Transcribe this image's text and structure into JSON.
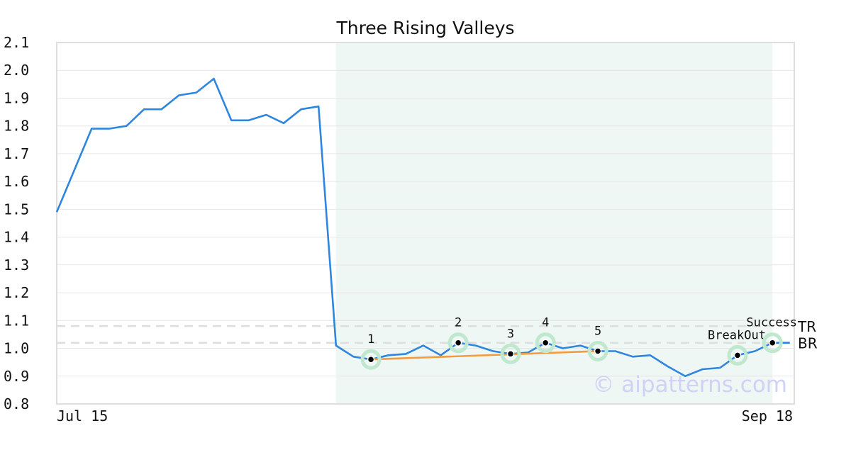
{
  "chart_data": {
    "type": "line",
    "title": "Three Rising Valleys",
    "x_labels": [
      "Jul 15",
      "Sep 18"
    ],
    "y_ticks": [
      "0.8",
      "0.9",
      "1.0",
      "1.1",
      "1.2",
      "1.3",
      "1.4",
      "1.5",
      "1.6",
      "1.7",
      "1.8",
      "1.9",
      "2.0",
      "2.1"
    ],
    "ylim": [
      0.8,
      2.1
    ],
    "grid": true,
    "colors": {
      "line": "#2e86de",
      "trendline": "#f39c3f",
      "highlight_band": "#eef7f3",
      "marker_halo": "#bfe8cf",
      "level_lines": "#dddddd"
    },
    "series": [
      {
        "values": [
          1.49,
          1.64,
          1.79,
          1.79,
          1.8,
          1.86,
          1.86,
          1.91,
          1.92,
          1.97,
          1.82,
          1.82,
          1.84,
          1.81,
          1.86,
          1.87,
          1.01,
          0.97,
          0.96,
          0.975,
          0.98,
          1.01,
          0.975,
          1.02,
          1.01,
          0.99,
          0.98,
          0.985,
          1.02,
          1.0,
          1.01,
          0.99,
          0.99,
          0.97,
          0.975,
          0.935,
          0.9,
          0.925,
          0.93,
          0.975,
          0.99,
          1.02,
          1.02
        ]
      }
    ],
    "highlight_range": {
      "from_index": 16,
      "to_index": 41
    },
    "points": [
      {
        "label": "1",
        "index": 18,
        "value": 0.96
      },
      {
        "label": "2",
        "index": 23,
        "value": 1.02
      },
      {
        "label": "3",
        "index": 26,
        "value": 0.98
      },
      {
        "label": "4",
        "index": 28,
        "value": 1.02
      },
      {
        "label": "5",
        "index": 31,
        "value": 0.99
      },
      {
        "label": "BreakOut",
        "index": 39,
        "value": 0.975
      },
      {
        "label": "Success",
        "index": 41,
        "value": 1.02
      }
    ],
    "trendline": {
      "from_index": 18,
      "from_value": 0.96,
      "to_index": 31,
      "to_value": 0.99
    },
    "levels": [
      {
        "label": "TR",
        "value": 1.08
      },
      {
        "label": "BR",
        "value": 1.02
      }
    ],
    "watermark": "© aipatterns.com"
  }
}
